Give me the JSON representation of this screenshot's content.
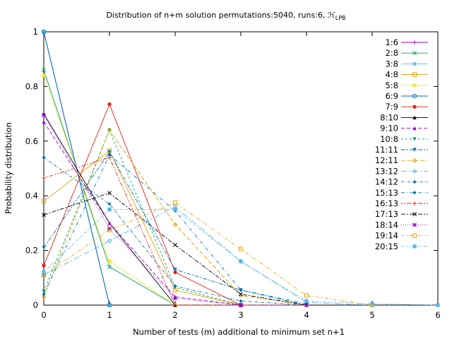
{
  "chart_data": {
    "type": "line",
    "title": "Distribution of n+m solution permutations:5040, runs:6, ℋ",
    "title_subscript": "LPB",
    "xlabel": "Number of tests (m) additional to minimum set n+1",
    "ylabel": "Probability distribution",
    "xlim": [
      0,
      6
    ],
    "ylim": [
      0,
      1
    ],
    "x_ticks": [
      "0",
      "1",
      "2",
      "3",
      "4",
      "5",
      "6"
    ],
    "y_ticks": [
      "0",
      "0.2",
      "0.4",
      "0.6",
      "0.8",
      "1"
    ],
    "grid": false,
    "legend_position": "top-right",
    "series": [
      {
        "name": "1:6",
        "color": "#9400d3",
        "dash": "",
        "marker": "plus",
        "x": [
          0,
          1
        ],
        "y": [
          1.0,
          0.0
        ]
      },
      {
        "name": "2:8",
        "color": "#009e73",
        "dash": "",
        "marker": "cross",
        "x": [
          0,
          1,
          2
        ],
        "y": [
          0.86,
          0.14,
          0.0
        ]
      },
      {
        "name": "3:8",
        "color": "#56b4e9",
        "dash": "",
        "marker": "star",
        "x": [
          0,
          1
        ],
        "y": [
          1.0,
          0.0
        ]
      },
      {
        "name": "4:8",
        "color": "#e69f00",
        "dash": "",
        "marker": "square",
        "x": [
          0,
          1,
          2,
          3
        ],
        "y": [
          0.38,
          0.565,
          0.055,
          0.0
        ]
      },
      {
        "name": "5:8",
        "color": "#f0e442",
        "dash": "",
        "marker": "filled-square",
        "x": [
          0,
          1,
          2
        ],
        "y": [
          0.84,
          0.16,
          0.0
        ]
      },
      {
        "name": "6:9",
        "color": "#0072b2",
        "dash": "",
        "marker": "circle",
        "x": [
          0,
          1
        ],
        "y": [
          1.0,
          0.0
        ]
      },
      {
        "name": "7:9",
        "color": "#e51e10",
        "dash": "",
        "marker": "filled-circle",
        "x": [
          0,
          1,
          2,
          3
        ],
        "y": [
          0.145,
          0.735,
          0.12,
          0.0
        ]
      },
      {
        "name": "8:10",
        "color": "#000000",
        "dash": "",
        "marker": "triangle",
        "x": [
          0,
          1,
          2,
          3
        ],
        "y": [
          0.7,
          0.3,
          0.0,
          0.0
        ]
      },
      {
        "name": "9:10",
        "color": "#9400d3",
        "dash": "5,3",
        "marker": "triangle",
        "x": [
          0,
          1,
          2,
          3
        ],
        "y": [
          0.67,
          0.3,
          0.03,
          0.0
        ]
      },
      {
        "name": "10:8",
        "color": "#009e73",
        "dash": "3,3",
        "marker": "triangle-down",
        "x": [
          0,
          1,
          2,
          3
        ],
        "y": [
          0.05,
          0.64,
          0.065,
          0.0
        ]
      },
      {
        "name": "11:11",
        "color": "#0072b2",
        "dash": "6,2,2,2",
        "marker": "triangle-down",
        "x": [
          0,
          1,
          2,
          3,
          4
        ],
        "y": [
          0.21,
          0.56,
          0.13,
          0.055,
          0.0
        ]
      },
      {
        "name": "12:11",
        "color": "#e69f00",
        "dash": "6,3",
        "marker": "diamond",
        "x": [
          0,
          1,
          2,
          3,
          4
        ],
        "y": [
          0.03,
          0.64,
          0.295,
          0.035,
          0.0
        ]
      },
      {
        "name": "13:12",
        "color": "#56b4e9",
        "dash": "8,3,2,3",
        "marker": "diamond",
        "x": [
          0,
          1,
          2,
          3,
          4,
          5
        ],
        "y": [
          0.11,
          0.235,
          0.36,
          0.16,
          0.01,
          0.0
        ]
      },
      {
        "name": "14:12",
        "color": "#0072b2",
        "dash": "4,2,1,2",
        "marker": "pentagon",
        "x": [
          0,
          1,
          2,
          3,
          4
        ],
        "y": [
          0.54,
          0.37,
          0.07,
          0.015,
          0.0
        ]
      },
      {
        "name": "15:13",
        "color": "#0072b2",
        "dash": "5,3,1,3",
        "marker": "pentagon",
        "x": [
          0,
          1,
          2,
          3,
          4
        ],
        "y": [
          0.04,
          0.55,
          0.345,
          0.055,
          0.005
        ]
      },
      {
        "name": "16:13",
        "color": "#e51e10",
        "dash": "2,2,2,2,6,2",
        "marker": "plus",
        "x": [
          0,
          1,
          2,
          3,
          4
        ],
        "y": [
          0.465,
          0.54,
          0.0,
          0.0,
          0.0
        ]
      },
      {
        "name": "17:13",
        "color": "#000000",
        "dash": "6,2,2,2",
        "marker": "cross",
        "x": [
          0,
          1,
          2,
          3,
          4
        ],
        "y": [
          0.33,
          0.41,
          0.22,
          0.04,
          0.0
        ]
      },
      {
        "name": "18:14",
        "color": "#9400d3",
        "dash": "1,2",
        "marker": "star",
        "x": [
          0,
          1,
          2,
          3,
          4
        ],
        "y": [
          0.695,
          0.28,
          0.025,
          0.0,
          0.0
        ]
      },
      {
        "name": "19:14",
        "color": "#e69f00",
        "dash": "4,2,1,2,1,2",
        "marker": "square",
        "x": [
          0,
          1,
          2,
          3,
          4,
          5
        ],
        "y": [
          0.11,
          0.275,
          0.375,
          0.205,
          0.035,
          0.0
        ]
      },
      {
        "name": "20:15",
        "color": "#56b4e9",
        "dash": "3,2,1,2",
        "marker": "filled-square",
        "x": [
          0,
          1,
          2,
          3,
          4,
          5,
          6
        ],
        "y": [
          0.12,
          0.35,
          0.35,
          0.16,
          0.015,
          0.005,
          0.0
        ]
      }
    ]
  }
}
